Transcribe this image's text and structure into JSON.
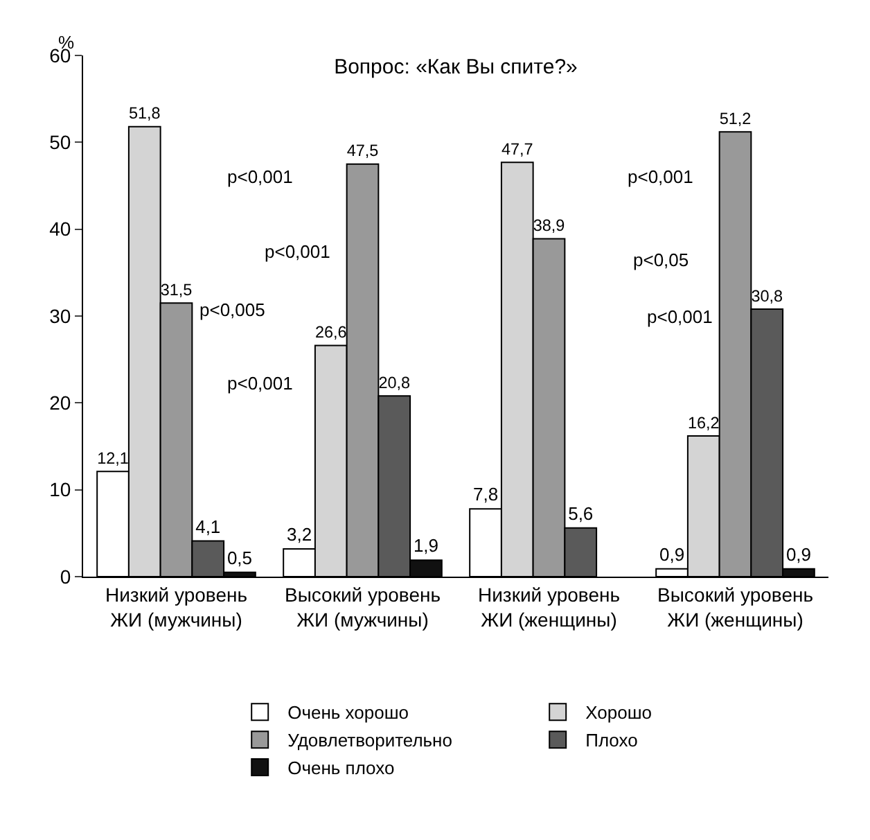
{
  "chart_data": {
    "type": "bar",
    "title": "Вопрос: «Как Вы спите?»",
    "ylabel": "%",
    "categories": [
      "Низкий уровень ЖИ (мужчины)",
      "Высокий уровень ЖИ (мужчины)",
      "Низкий уровень ЖИ (женщины)",
      "Высокий уровень ЖИ (женщины)"
    ],
    "series": [
      {
        "name": "Очень хорошо",
        "color": "#ffffff",
        "values": [
          12.1,
          3.2,
          7.8,
          0.9
        ],
        "value_labels": [
          "12,1",
          "3,2",
          "7,8",
          "0,9"
        ]
      },
      {
        "name": "Хорошо",
        "color": "#d4d4d4",
        "values": [
          51.8,
          26.6,
          47.7,
          16.2
        ],
        "value_labels": [
          "51,8",
          "26,6",
          "47,7",
          "16,2"
        ]
      },
      {
        "name": "Удовлетворительно",
        "color": "#999999",
        "values": [
          31.5,
          47.5,
          38.9,
          51.2
        ],
        "value_labels": [
          "31,5",
          "47,5",
          "38,9",
          "51,2"
        ]
      },
      {
        "name": "Плохо",
        "color": "#5a5a5a",
        "values": [
          4.1,
          20.8,
          5.6,
          30.8
        ],
        "value_labels": [
          "4,1",
          "20,8",
          "5,6",
          "30,8"
        ]
      },
      {
        "name": "Очень плохо",
        "color": "#111111",
        "values": [
          0.5,
          1.9,
          null,
          0.9
        ],
        "value_labels": [
          "0,5",
          "1,9",
          null,
          "0,9"
        ]
      }
    ],
    "ylim": [
      0,
      60
    ],
    "yticks": [
      0,
      10,
      20,
      30,
      40,
      50,
      60
    ],
    "legend": "bottom",
    "annotations": [
      "p<0,001",
      "p<0,001",
      "p<0,005",
      "p<0,001",
      "p<0,001",
      "p<0,05",
      "p<0,001"
    ]
  }
}
